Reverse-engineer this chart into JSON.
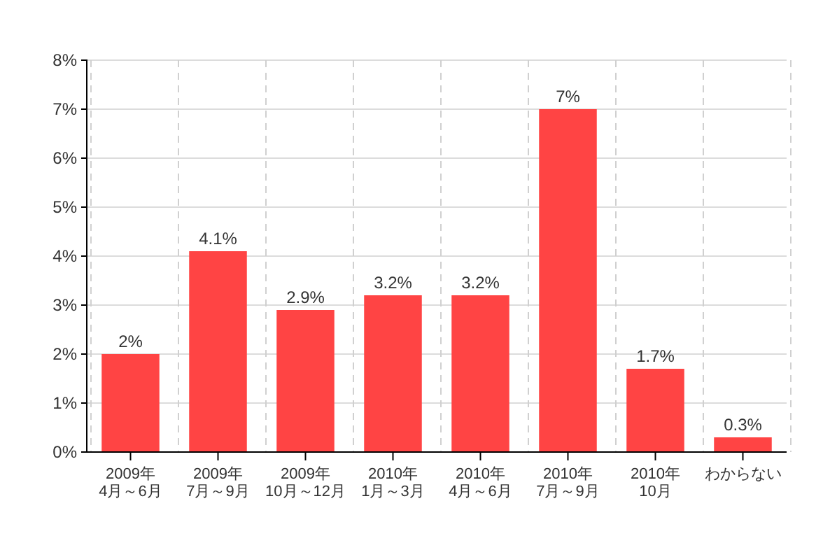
{
  "chart_data": {
    "type": "bar",
    "categories": [
      "2009年\n4月～6月",
      "2009年\n7月～9月",
      "2009年\n10月～12月",
      "2010年\n1月～3月",
      "2010年\n4月～6月",
      "2010年\n7月～9月",
      "2010年\n10月",
      "わからない"
    ],
    "values": [
      2,
      4.1,
      2.9,
      3.2,
      3.2,
      7,
      1.7,
      0.3
    ],
    "value_labels": [
      "2%",
      "4.1%",
      "2.9%",
      "3.2%",
      "3.2%",
      "7%",
      "1.7%",
      "0.3%"
    ],
    "color": "#ff4444",
    "ylim": [
      0,
      8
    ],
    "yticks": [
      {
        "value": 0,
        "label": "0%"
      },
      {
        "value": 1,
        "label": "1%"
      },
      {
        "value": 2,
        "label": "2%"
      },
      {
        "value": 3,
        "label": "3%"
      },
      {
        "value": 4,
        "label": "4%"
      },
      {
        "value": 5,
        "label": "5%"
      },
      {
        "value": 6,
        "label": "6%"
      },
      {
        "value": 7,
        "label": "7%"
      },
      {
        "value": 8,
        "label": "8%"
      }
    ],
    "grid": true
  }
}
